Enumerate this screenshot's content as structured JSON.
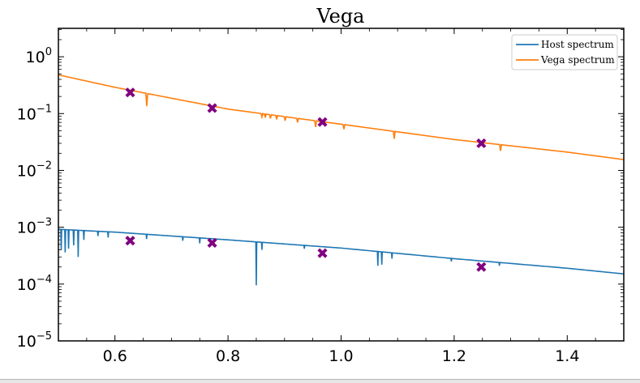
{
  "chart_data": {
    "type": "line",
    "title": "Vega",
    "xlabel": "",
    "ylabel": "",
    "xlim": [
      0.5,
      1.5
    ],
    "ylim_log10": [
      -5,
      0.5
    ],
    "yscale": "log",
    "x_ticks": [
      0.6,
      0.8,
      1.0,
      1.2,
      1.4
    ],
    "x_tick_labels": [
      "0.6",
      "0.8",
      "1.0",
      "1.2",
      "1.4"
    ],
    "y_ticks_log10": [
      0,
      -1,
      -2,
      -3,
      -4,
      -5
    ],
    "legend": {
      "placement": "top-right",
      "entries": [
        "Host spectrum",
        "Vega spectrum"
      ]
    },
    "series": [
      {
        "name": "Host spectrum",
        "color": "#1f77b4",
        "continuum": {
          "x": [
            0.5,
            0.6,
            0.8,
            1.0,
            1.2,
            1.4,
            1.5
          ],
          "y": [
            0.00092,
            0.00082,
            0.0006,
            0.00043,
            0.00028,
            0.00019,
            0.000151
          ]
        },
        "absorption_lines": [
          {
            "x": 0.505,
            "y": 0.0004
          },
          {
            "x": 0.512,
            "y": 0.00036
          },
          {
            "x": 0.518,
            "y": 0.00042
          },
          {
            "x": 0.527,
            "y": 0.00048
          },
          {
            "x": 0.535,
            "y": 0.0003
          },
          {
            "x": 0.545,
            "y": 0.0006
          },
          {
            "x": 0.57,
            "y": 0.0007
          },
          {
            "x": 0.588,
            "y": 0.00066
          },
          {
            "x": 0.656,
            "y": 0.00062
          },
          {
            "x": 0.72,
            "y": 0.00058
          },
          {
            "x": 0.75,
            "y": 0.00052
          },
          {
            "x": 0.85,
            "y": 9.5e-05
          },
          {
            "x": 0.86,
            "y": 0.0004
          },
          {
            "x": 0.935,
            "y": 0.00042
          },
          {
            "x": 1.065,
            "y": 0.00021
          },
          {
            "x": 1.072,
            "y": 0.00022
          },
          {
            "x": 1.09,
            "y": 0.00028
          },
          {
            "x": 1.195,
            "y": 0.00025
          },
          {
            "x": 1.28,
            "y": 0.00021
          }
        ]
      },
      {
        "name": "Vega spectrum",
        "color": "#ff7f0e",
        "continuum": {
          "x": [
            0.5,
            0.6,
            0.8,
            1.0,
            1.2,
            1.4,
            1.5
          ],
          "y": [
            0.48,
            0.29,
            0.12,
            0.065,
            0.035,
            0.021,
            0.0155
          ]
        },
        "absorption_lines": [
          {
            "x": 0.6563,
            "y": 0.135
          },
          {
            "x": 0.86,
            "y": 0.087
          },
          {
            "x": 0.866,
            "y": 0.085
          },
          {
            "x": 0.875,
            "y": 0.082
          },
          {
            "x": 0.886,
            "y": 0.079
          },
          {
            "x": 0.901,
            "y": 0.075
          },
          {
            "x": 0.923,
            "y": 0.07
          },
          {
            "x": 0.955,
            "y": 0.058
          },
          {
            "x": 1.005,
            "y": 0.053
          },
          {
            "x": 1.094,
            "y": 0.036
          },
          {
            "x": 1.282,
            "y": 0.022
          }
        ]
      },
      {
        "name": "",
        "type": "scatter",
        "marker": "X",
        "color": "#800080",
        "points": [
          {
            "x": 0.627,
            "y": 0.235
          },
          {
            "x": 0.772,
            "y": 0.125
          },
          {
            "x": 0.967,
            "y": 0.071
          },
          {
            "x": 1.248,
            "y": 0.03
          },
          {
            "x": 0.627,
            "y": 0.00058
          },
          {
            "x": 0.772,
            "y": 0.00053
          },
          {
            "x": 0.967,
            "y": 0.00035
          },
          {
            "x": 1.248,
            "y": 0.0002
          }
        ]
      }
    ]
  }
}
